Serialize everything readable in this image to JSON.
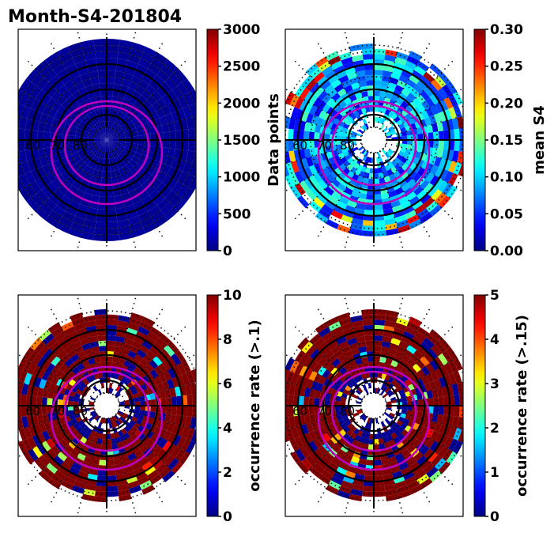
{
  "title": "Month-S4-201804",
  "chart_data": [
    {
      "type": "heatmap",
      "projection": "polar (north magnetic latitude)",
      "title": "Month-S4-201804",
      "colorbar_label": "Data points",
      "clim": [
        0,
        3000
      ],
      "colorbar_ticks": [
        "0",
        "500",
        "1000",
        "1500",
        "2000",
        "2500",
        "3000"
      ],
      "latitude_labels": [
        "60",
        "70",
        "80"
      ],
      "fill_pattern": "uniform-low",
      "typical_value": 50
    },
    {
      "type": "heatmap",
      "projection": "polar (north magnetic latitude)",
      "colorbar_label": "mean S4",
      "clim": [
        0.0,
        0.3
      ],
      "colorbar_ticks": [
        "0.00",
        "0.05",
        "0.10",
        "0.15",
        "0.20",
        "0.25",
        "0.30"
      ],
      "latitude_labels": [
        "60",
        "70",
        "80"
      ],
      "fill_pattern": "mixed",
      "typical_value": 0.08
    },
    {
      "type": "heatmap",
      "projection": "polar (north magnetic latitude)",
      "colorbar_label": "occurrence rate (>.1)",
      "clim": [
        0,
        10
      ],
      "colorbar_ticks": [
        "0",
        "2",
        "4",
        "6",
        "8",
        "10"
      ],
      "latitude_labels": [
        "60",
        "70",
        "80"
      ],
      "fill_pattern": "mostly-high",
      "typical_value": 10
    },
    {
      "type": "heatmap",
      "projection": "polar (north magnetic latitude)",
      "colorbar_label": "occurrence rate (>.15)",
      "clim": [
        0,
        5
      ],
      "colorbar_ticks": [
        "0",
        "1",
        "2",
        "3",
        "4",
        "5"
      ],
      "latitude_labels": [
        "60",
        "70",
        "80"
      ],
      "fill_pattern": "mostly-high",
      "typical_value": 5
    }
  ],
  "colormap": "jet",
  "oval_color": "#c000c0"
}
